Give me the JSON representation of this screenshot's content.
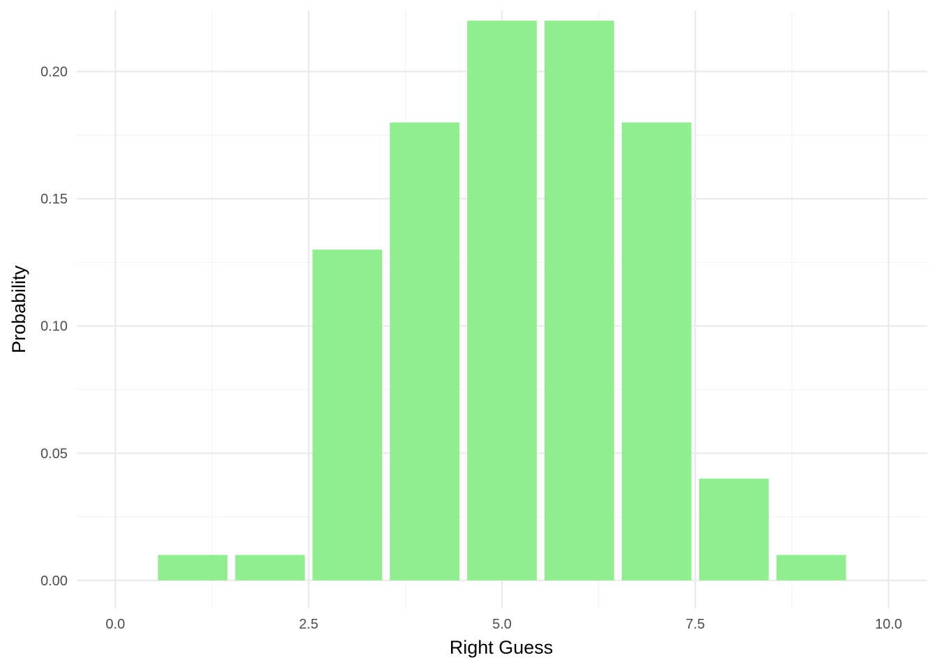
{
  "chart_data": {
    "type": "bar",
    "title": "",
    "xlabel": "Right Guess",
    "ylabel": "Probability",
    "x": [
      1,
      2,
      3,
      4,
      5,
      6,
      7,
      8,
      9
    ],
    "values": [
      0.01,
      0.01,
      0.13,
      0.18,
      0.22,
      0.22,
      0.18,
      0.04,
      0.01
    ],
    "xlim": [
      -0.5,
      10.5
    ],
    "ylim": [
      -0.011,
      0.224
    ],
    "x_ticks": [
      0.0,
      2.5,
      5.0,
      7.5,
      10.0
    ],
    "x_tick_labels": [
      "0.0",
      "2.5",
      "5.0",
      "7.5",
      "10.0"
    ],
    "y_ticks": [
      0.0,
      0.05,
      0.1,
      0.15,
      0.2
    ],
    "y_tick_labels": [
      "0.00",
      "0.05",
      "0.10",
      "0.15",
      "0.20"
    ],
    "bar_width": 0.9,
    "grid": true,
    "legend": false,
    "colors": {
      "bar": "#90ee90",
      "grid_major": "#ebebeb",
      "grid_minor": "#f3f3f3",
      "tick_text": "#4d4d4d",
      "axis_title": "#000000"
    }
  }
}
